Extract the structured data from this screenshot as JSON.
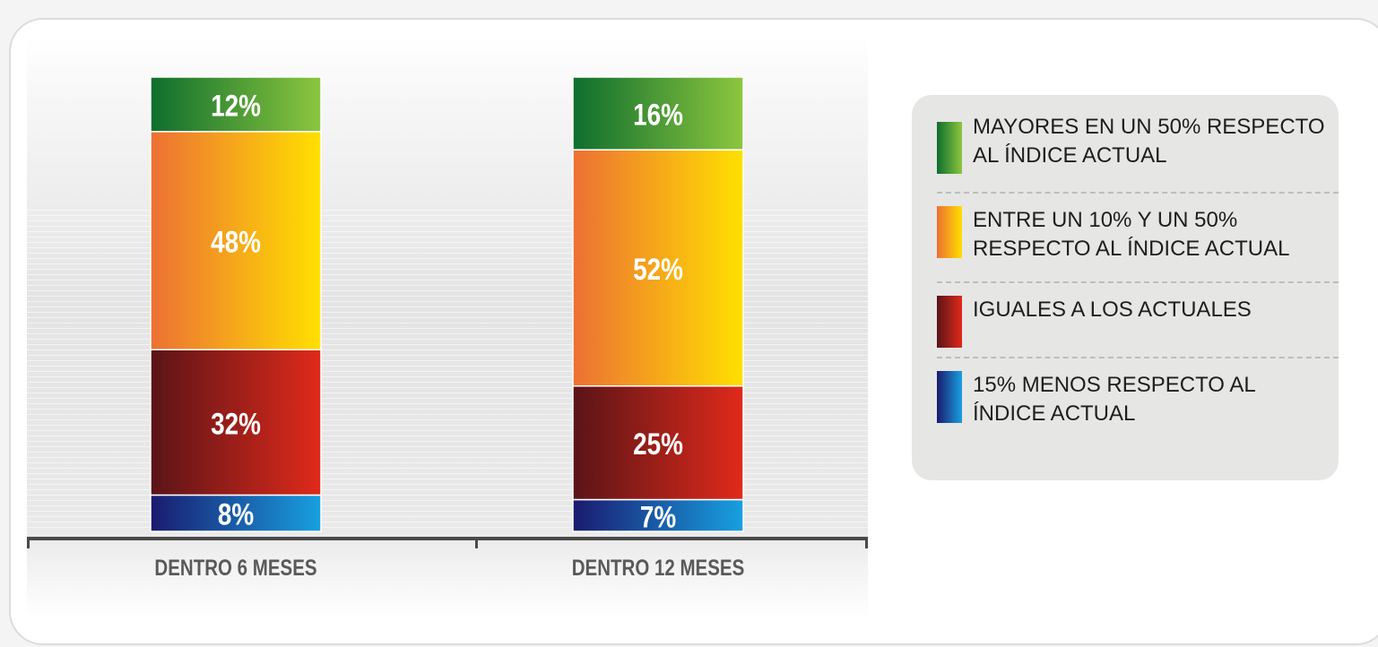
{
  "chart_data": {
    "type": "bar",
    "stacked": true,
    "orientation": "vertical",
    "categories": [
      "DENTRO 6 MESES",
      "DENTRO 12 MESES"
    ],
    "series": [
      {
        "name": "15% MENOS RESPECTO AL ÍNDICE ACTUAL",
        "values": [
          8,
          7
        ],
        "labels": [
          "8%",
          "7%"
        ],
        "colors": [
          "#1a1a6e",
          "#18a0e0"
        ]
      },
      {
        "name": "IGUALES A LOS ACTUALES",
        "values": [
          32,
          25
        ],
        "labels": [
          "32%",
          "25%"
        ],
        "colors": [
          "#5a1418",
          "#e02a1a"
        ]
      },
      {
        "name": "ENTRE UN 10% Y UN 50% RESPECTO AL ÍNDICE ACTUAL",
        "values": [
          48,
          52
        ],
        "labels": [
          "48%",
          "52%"
        ],
        "colors": [
          "#ec7034",
          "#ffe000"
        ]
      },
      {
        "name": "MAYORES EN UN 50% RESPECTO AL ÍNDICE ACTUAL",
        "values": [
          12,
          16
        ],
        "labels": [
          "12%",
          "16%"
        ],
        "colors": [
          "#0e6e2e",
          "#8cc63e"
        ]
      }
    ],
    "ylim": [
      0,
      100
    ],
    "title": "",
    "xlabel": "",
    "ylabel": "",
    "legend_position": "right"
  },
  "legend": {
    "items": [
      {
        "label": "MAYORES EN UN 50% RESPECTO AL ÍNDICE ACTUAL",
        "colors": [
          "#0e6e2e",
          "#8cc63e"
        ]
      },
      {
        "label": "ENTRE UN 10% Y UN 50% RESPECTO AL ÍNDICE ACTUAL",
        "colors": [
          "#ec7034",
          "#ffe000"
        ]
      },
      {
        "label": "IGUALES A LOS ACTUALES",
        "colors": [
          "#5a1418",
          "#e02a1a"
        ]
      },
      {
        "label": "15% MENOS RESPECTO AL ÍNDICE ACTUAL",
        "colors": [
          "#1a1a6e",
          "#18a0e0"
        ]
      }
    ]
  }
}
